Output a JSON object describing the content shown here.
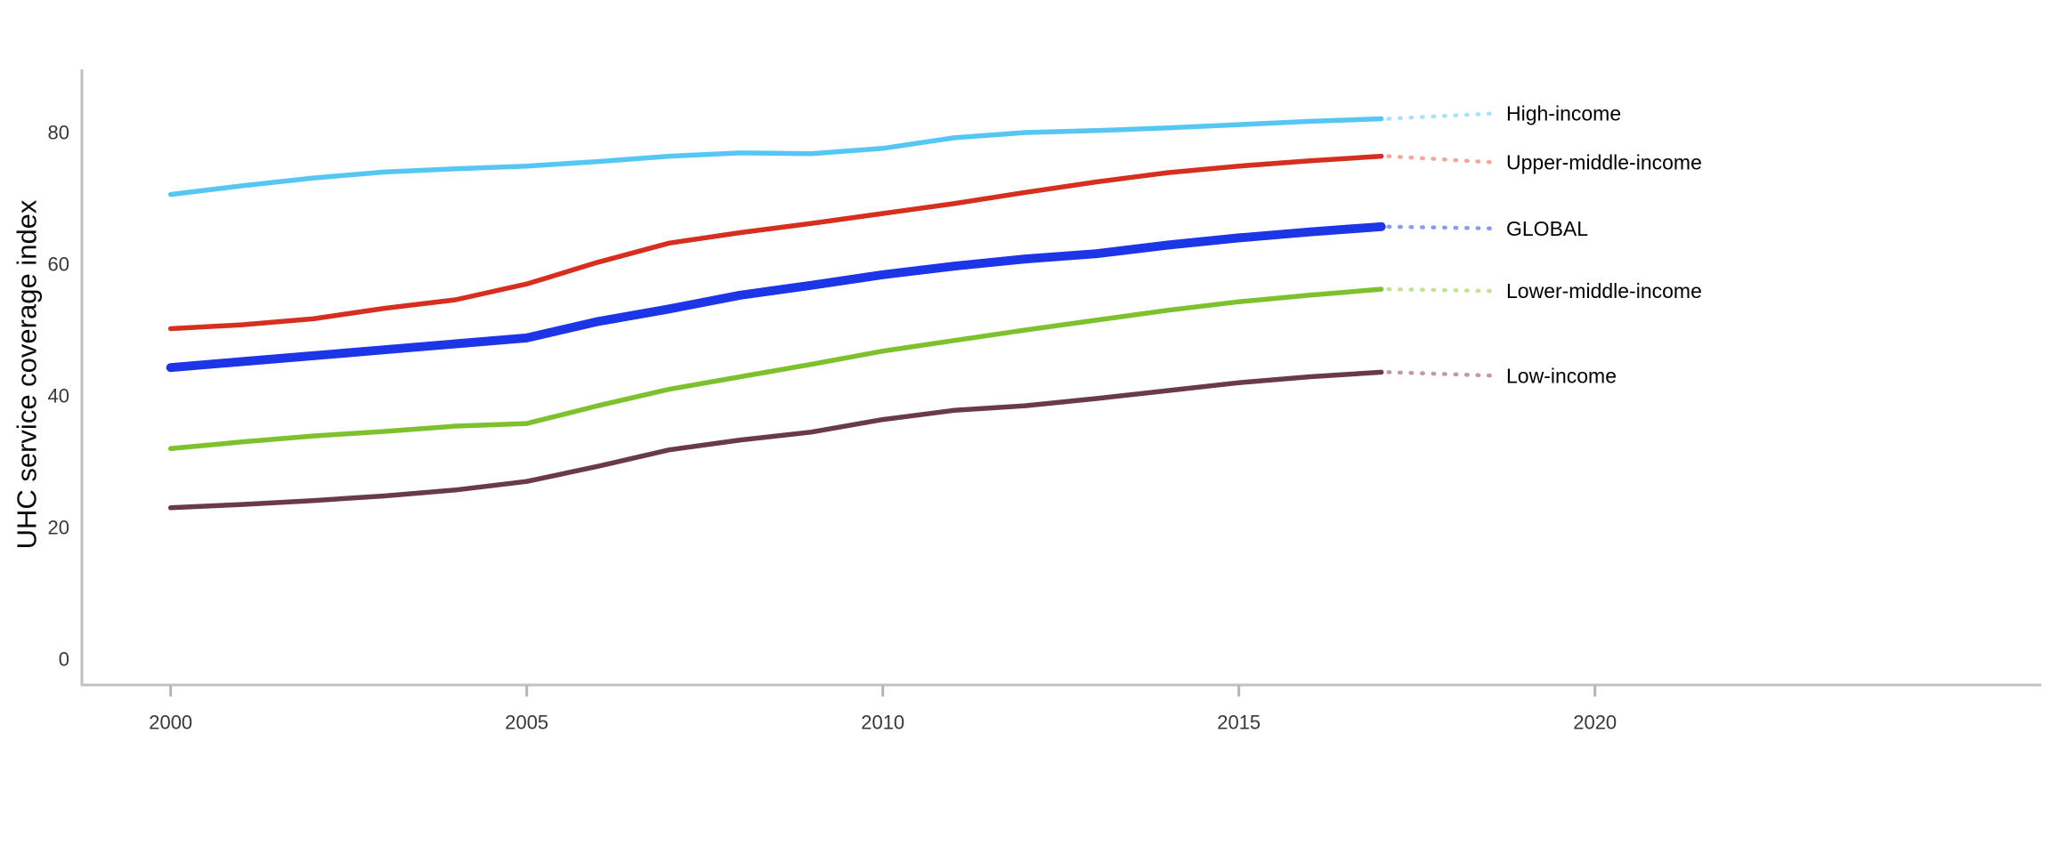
{
  "page": {
    "background_color": "#ffffff"
  },
  "chart_data": {
    "type": "line",
    "title": "",
    "xlabel": "",
    "ylabel": "UHC service coverage index",
    "grid": false,
    "legend_position": "direct-labels-right-of-lines",
    "axis_color": "#c2c2c2",
    "tick_color": "#b5b5b5",
    "xlim": [
      1998.75,
      2026.3
    ],
    "ylim": [
      -4,
      89
    ],
    "x_tick_values": [
      2000,
      2005,
      2010,
      2015,
      2020
    ],
    "x_tick_labels": [
      "2000",
      "2005",
      "2010",
      "2015",
      "2020"
    ],
    "y_tick_values": [
      0,
      20,
      40,
      60,
      80
    ],
    "y_tick_labels": [
      "0",
      "20",
      "40",
      "60",
      "80"
    ],
    "years": [
      2000,
      2001,
      2002,
      2003,
      2004,
      2005,
      2006,
      2007,
      2008,
      2009,
      2010,
      2011,
      2012,
      2013,
      2014,
      2015,
      2016,
      2017
    ],
    "series": [
      {
        "name": "High-income",
        "color": "#55C7F2",
        "leader_color": "#ABE2F8",
        "line_width": 5.5,
        "values": [
          70.6,
          71.9,
          73.1,
          74.0,
          74.5,
          74.9,
          75.6,
          76.4,
          76.9,
          76.8,
          77.6,
          79.2,
          80.0,
          80.3,
          80.7,
          81.2,
          81.7,
          82.1
        ]
      },
      {
        "name": "Upper-middle-income",
        "color": "#D62E1F",
        "leader_color": "#F0A79D",
        "line_width": 5.5,
        "values": [
          50.2,
          50.8,
          51.7,
          53.3,
          54.6,
          57.0,
          60.3,
          63.2,
          64.8,
          66.2,
          67.7,
          69.2,
          70.9,
          72.5,
          73.9,
          74.9,
          75.7,
          76.4
        ]
      },
      {
        "name": "GLOBAL",
        "color": "#1C35E6",
        "leader_color": "#8C9CEA",
        "line_width": 10,
        "values": [
          44.3,
          45.2,
          46.1,
          47.0,
          47.9,
          48.8,
          51.3,
          53.2,
          55.3,
          56.8,
          58.4,
          59.7,
          60.8,
          61.6,
          62.9,
          64.0,
          64.9,
          65.7
        ]
      },
      {
        "name": "Lower-middle-income",
        "color": "#7DC22E",
        "leader_color": "#C3E294",
        "line_width": 5.5,
        "values": [
          32.0,
          33.0,
          33.9,
          34.6,
          35.4,
          35.8,
          38.5,
          41.0,
          42.9,
          44.8,
          46.8,
          48.4,
          50.0,
          51.5,
          53.0,
          54.3,
          55.3,
          56.2
        ]
      },
      {
        "name": "Low-income",
        "color": "#6A3A49",
        "leader_color": "#BE9BA5",
        "line_width": 5.5,
        "values": [
          23.0,
          23.5,
          24.1,
          24.8,
          25.7,
          27.0,
          29.3,
          31.8,
          33.3,
          34.5,
          36.4,
          37.8,
          38.5,
          39.6,
          40.8,
          42.0,
          42.9,
          43.6
        ]
      }
    ]
  }
}
